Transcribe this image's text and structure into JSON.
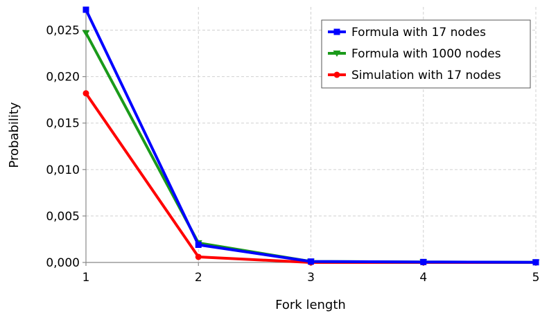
{
  "chart_data": {
    "type": "line",
    "title": "",
    "xlabel": "Fork length",
    "ylabel": "Probability",
    "x": [
      1,
      2,
      3,
      4,
      5
    ],
    "x_ticks": [
      "1",
      "2",
      "3",
      "4",
      "5"
    ],
    "y_ticks": [
      "0,000",
      "0,005",
      "0,010",
      "0,015",
      "0,020",
      "0,025"
    ],
    "y_tick_values": [
      0,
      0.005,
      0.01,
      0.015,
      0.02,
      0.025
    ],
    "xlim": [
      1,
      5
    ],
    "ylim": [
      0,
      0.0275
    ],
    "grid": true,
    "legend_position": "top-right",
    "series": [
      {
        "name": "Formula with 17 nodes",
        "color": "#0000ff",
        "marker": "square",
        "values": [
          0.0272,
          0.0019,
          0.0001,
          5e-05,
          2e-05
        ]
      },
      {
        "name": "Formula with 1000 nodes",
        "color": "#1a9a1a",
        "marker": "triangle-down",
        "values": [
          0.0247,
          0.0021,
          0.0001,
          5e-05,
          2e-05
        ]
      },
      {
        "name": "Simulation with 17 nodes",
        "color": "#ff0000",
        "marker": "circle",
        "values": [
          0.0182,
          0.0006,
          0.0,
          0.0,
          0.0
        ]
      }
    ]
  }
}
